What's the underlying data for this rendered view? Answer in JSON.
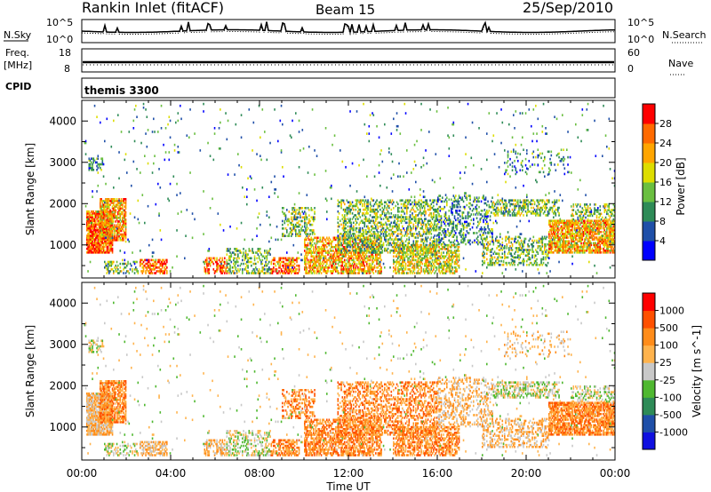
{
  "header": {
    "station": "Rankin Inlet (fitACF)",
    "beam": "Beam 15",
    "date": "25/Sep/2010"
  },
  "noise_panel": {
    "left_label": "N.Sky",
    "right_label": "N.Search",
    "left_ticks": [
      "10^5",
      "10^0"
    ],
    "right_ticks": [
      "10^5",
      "10^0"
    ]
  },
  "freq_panel": {
    "left_label_1": "Freq.",
    "left_label_2": "[MHz]",
    "left_ticks": [
      "18",
      "8"
    ],
    "right_label": "Nave",
    "right_ticks": [
      "60",
      "0"
    ]
  },
  "cpid_panel": {
    "label": "CPID",
    "program": "themis 3300"
  },
  "colors": {
    "scale": [
      "#0000ff",
      "#1f4fa8",
      "#2e8b57",
      "#6abf40",
      "#dddd00",
      "#ffa500",
      "#ff6a00",
      "#ff0000"
    ],
    "velocity": [
      "#ff0000",
      "#ff5000",
      "#ff8c1a",
      "#ffb34d",
      "#c8c8c8",
      "#4fb830",
      "#2e8b57",
      "#1f4fa8",
      "#1010e0"
    ]
  },
  "chart_data": [
    {
      "type": "heatmap",
      "name_label": "power-panel",
      "ylabel": "Slant Range [km]",
      "yticks": [
        "1000",
        "2000",
        "3000",
        "4000"
      ],
      "ylim": [
        200,
        4500
      ],
      "colorbar_label": "Power [dB]",
      "colorbar_ticks": [
        "4",
        "8",
        "12",
        "16",
        "20",
        "24",
        "28"
      ],
      "clim": [
        0,
        32
      ]
    },
    {
      "type": "heatmap",
      "name_label": "velocity-panel",
      "ylabel": "Slant Range [km]",
      "yticks": [
        "1000",
        "2000",
        "3000",
        "4000"
      ],
      "ylim": [
        200,
        4500
      ],
      "colorbar_label": "Velocity [m s^-1]",
      "colorbar_ticks": [
        "1000",
        "500",
        "100",
        "25",
        "-25",
        "-100",
        "-500",
        "-1000"
      ]
    }
  ],
  "xaxis": {
    "label": "Time UT",
    "ticks": [
      "00:00",
      "04:00",
      "08:00",
      "12:00",
      "16:00",
      "20:00",
      "00:00"
    ],
    "xlim": [
      0,
      24
    ]
  }
}
